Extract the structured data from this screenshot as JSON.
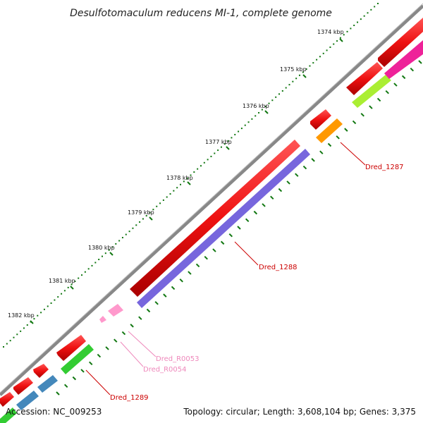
{
  "title": "Desulfotomaculum reducens MI-1, complete genome",
  "footer": {
    "accession": "Accession: NC_009253",
    "topology": "Topology: circular; Length: 3,608,104 bp; Genes: 3,375"
  },
  "scale_labels": [
    "1374 kbp",
    "1375 kbp",
    "1376 kbp",
    "1377 kbp",
    "1378 kbp",
    "1379 kbp",
    "1380 kbp",
    "1381 kbp",
    "1382 kbp"
  ],
  "gene_labels": [
    {
      "id": "Dred_1287",
      "color": "#cc0000"
    },
    {
      "id": "Dred_1288",
      "color": "#cc0000"
    },
    {
      "id": "Dred_R0053",
      "color": "#ee88bb"
    },
    {
      "id": "Dred_R0054",
      "color": "#ee88bb"
    },
    {
      "id": "Dred_1289",
      "color": "#cc0000"
    }
  ],
  "colors": {
    "forward_cds": "#ee1111",
    "cog_purple": "#7766dd",
    "cog_orange": "#ff9900",
    "cog_green": "#33cc33",
    "cog_lime": "#aaee33",
    "cog_blue": "#4488bb",
    "cog_magenta": "#ee2299",
    "rna_pink": "#ff99cc",
    "backbone": "#777777",
    "tick_green": "#117711"
  }
}
